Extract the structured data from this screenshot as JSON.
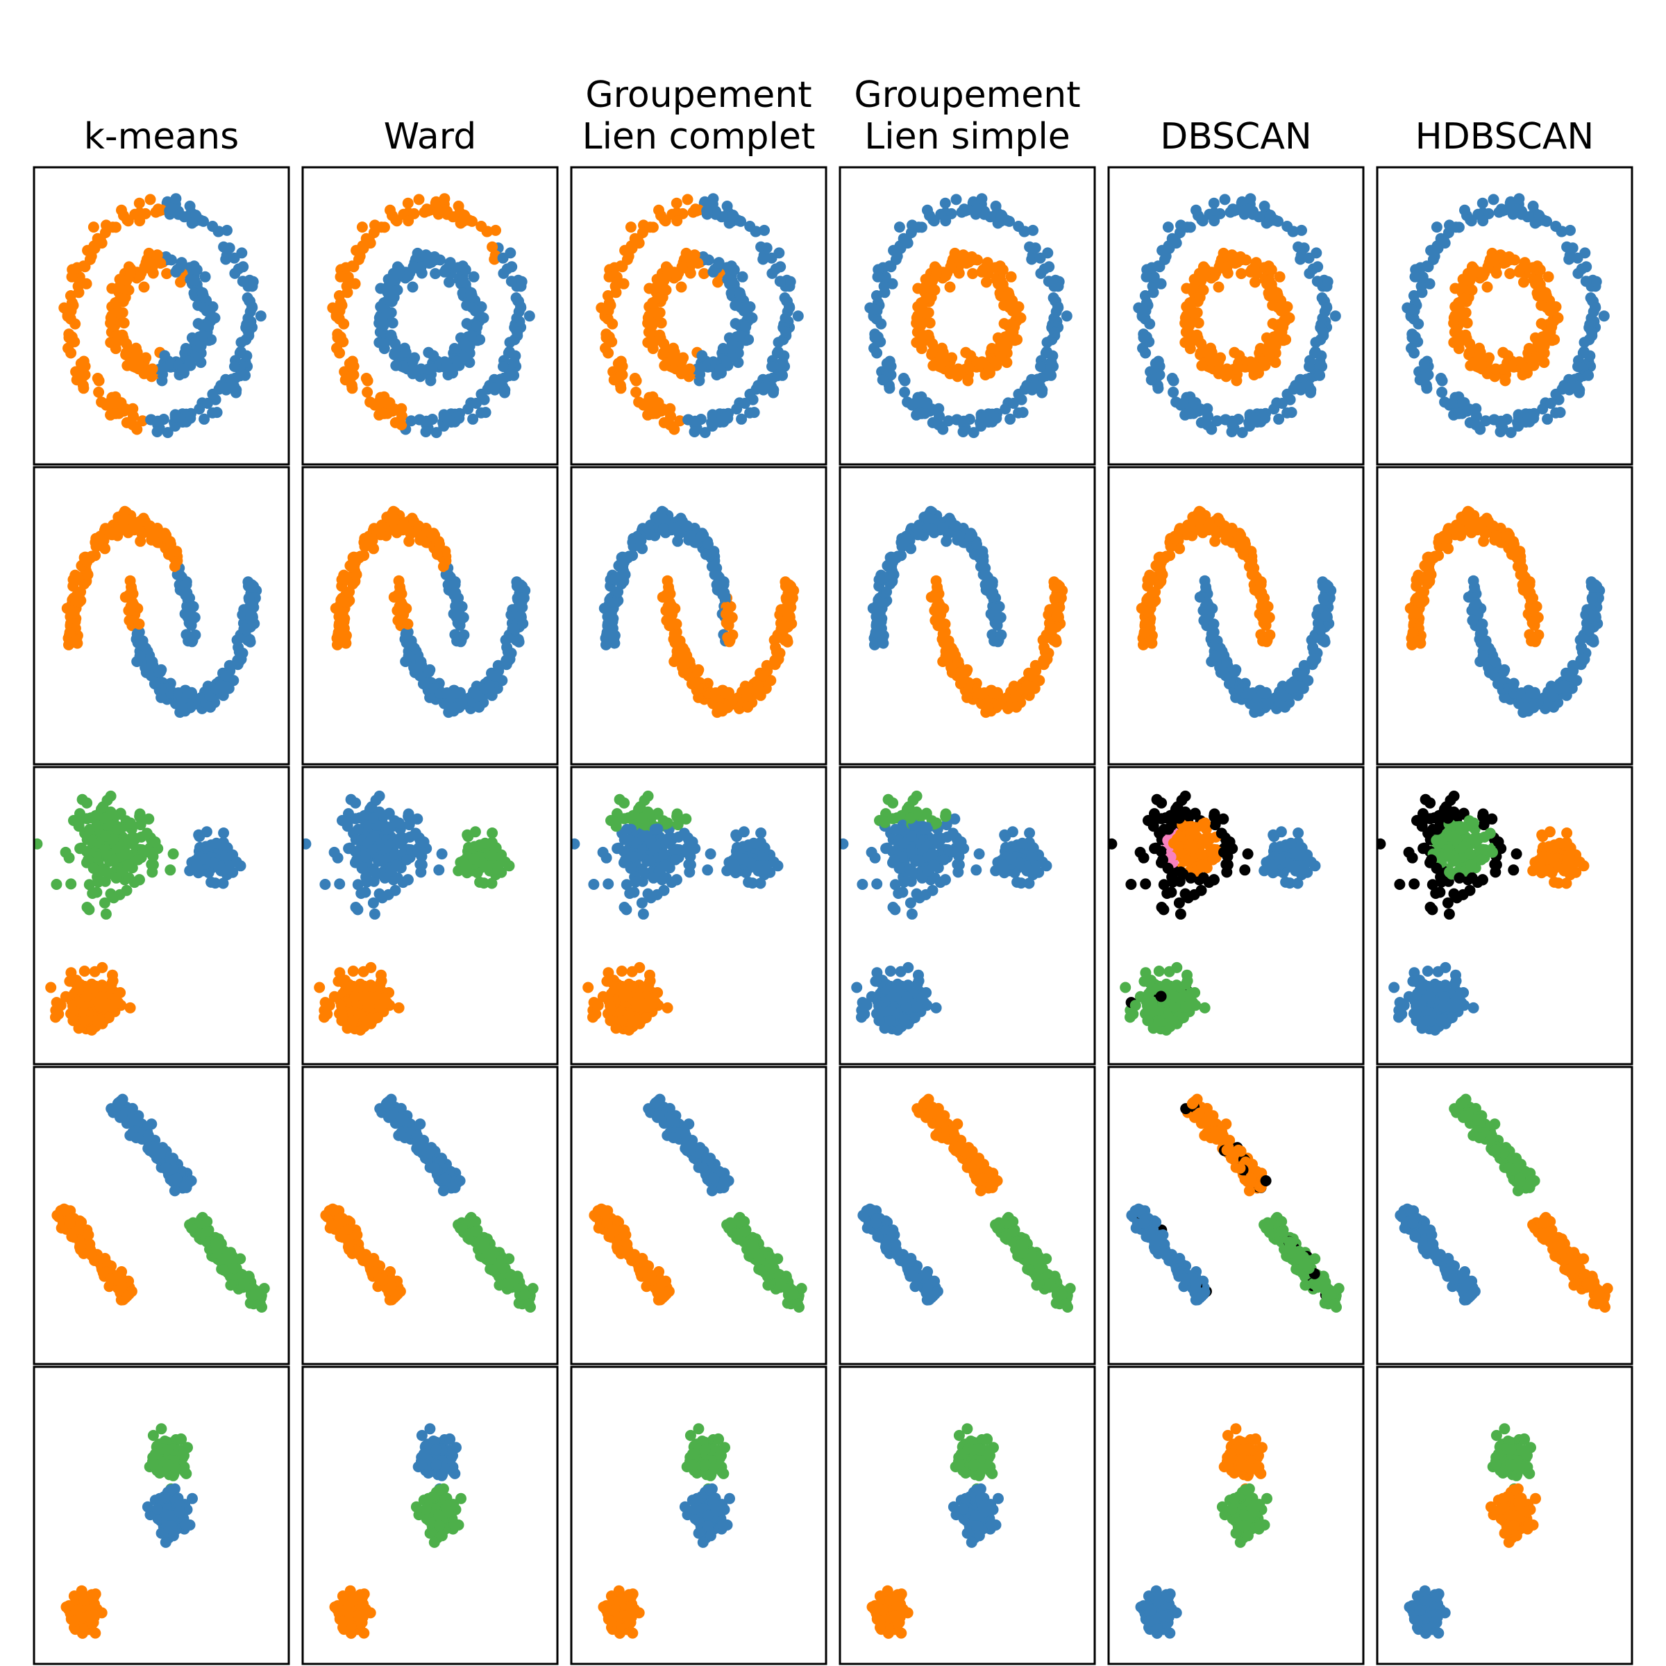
{
  "chart_data": {
    "type": "scatter",
    "description_grid": "5 rows (datasets) x 6 columns (algorithms)",
    "columns": [
      {
        "key": "kmeans",
        "title_lines": [
          "k-means"
        ]
      },
      {
        "key": "ward",
        "title_lines": [
          "Ward"
        ]
      },
      {
        "key": "complete",
        "title_lines": [
          "Groupement",
          "Lien complet"
        ]
      },
      {
        "key": "single",
        "title_lines": [
          "Groupement",
          "Lien simple"
        ]
      },
      {
        "key": "dbscan",
        "title_lines": [
          "DBSCAN"
        ]
      },
      {
        "key": "hdbscan",
        "title_lines": [
          "HDBSCAN"
        ]
      }
    ],
    "rows": [
      {
        "dataset": "noisy_circles",
        "xlim": [
          -1.2,
          1.2
        ],
        "ylim": [
          -1.2,
          1.2
        ]
      },
      {
        "dataset": "noisy_moons",
        "xlim": [
          -1.3,
          2.3
        ],
        "ylim": [
          -0.85,
          1.3
        ]
      },
      {
        "dataset": "varied",
        "xlim": [
          -1.0,
          1.6
        ],
        "ylim": [
          -1.6,
          1.8
        ]
      },
      {
        "dataset": "aniso",
        "xlim": [
          -1.2,
          1.2
        ],
        "ylim": [
          -1.2,
          1.2
        ]
      },
      {
        "dataset": "blobs",
        "xlim": [
          -1.2,
          1.2
        ],
        "ylim": [
          -1.2,
          1.2
        ]
      }
    ],
    "label_colors": {
      "0": "#377eb8",
      "1": "#ff7f00",
      "2": "#4daf4a",
      "3": "#f781bf",
      "4": "#a65628",
      "5": "#984ea3",
      "noise": "#000000"
    },
    "marker_size": 10,
    "axes_ticks": "none",
    "grid": false,
    "legend": "none"
  }
}
